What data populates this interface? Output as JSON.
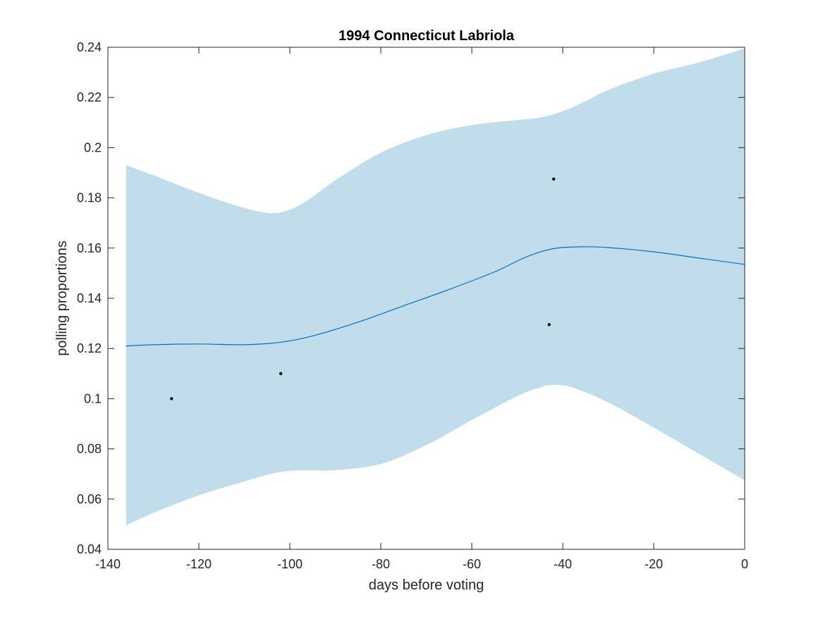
{
  "chart_data": {
    "type": "line",
    "title": "1994 Connecticut Labriola",
    "xlabel": "days before voting",
    "ylabel": "polling proportions",
    "xlim": [
      -140,
      0
    ],
    "ylim": [
      0.04,
      0.24
    ],
    "xticks": [
      -140,
      -120,
      -100,
      -80,
      -60,
      -40,
      -20,
      0
    ],
    "xtick_labels": [
      "-140",
      "-120",
      "-100",
      "-80",
      "-60",
      "-40",
      "-20",
      "0"
    ],
    "yticks": [
      0.04,
      0.06,
      0.08,
      0.1,
      0.12,
      0.14,
      0.16,
      0.18,
      0.2,
      0.22,
      0.24
    ],
    "ytick_labels": [
      "0.04",
      "0.06",
      "0.08",
      "0.1",
      "0.12",
      "0.14",
      "0.16",
      "0.18",
      "0.2",
      "0.22",
      "0.24"
    ],
    "grid": false,
    "colors": {
      "band": "#c1ddeb",
      "trend": "#0072bd",
      "points": "#000000",
      "axes": "#262626"
    },
    "trend": {
      "x": [
        -136,
        -130,
        -120,
        -110,
        -102,
        -95,
        -85,
        -75,
        -65,
        -55,
        -48,
        -42,
        -36,
        -30,
        -20,
        -10,
        0
      ],
      "y": [
        0.121,
        0.1215,
        0.1218,
        0.1215,
        0.1225,
        0.125,
        0.1305,
        0.137,
        0.1435,
        0.1505,
        0.1565,
        0.1598,
        0.1605,
        0.1602,
        0.1585,
        0.156,
        0.1535
      ]
    },
    "band_upper": {
      "x": [
        -136,
        -130,
        -120,
        -110,
        -103,
        -97,
        -90,
        -80,
        -70,
        -60,
        -50,
        -45,
        -40,
        -35,
        -30,
        -20,
        -10,
        0
      ],
      "y": [
        0.193,
        0.189,
        0.182,
        0.176,
        0.174,
        0.178,
        0.187,
        0.198,
        0.205,
        0.209,
        0.211,
        0.212,
        0.2145,
        0.2185,
        0.223,
        0.2295,
        0.234,
        0.2395
      ]
    },
    "band_lower": {
      "x": [
        -136,
        -130,
        -120,
        -110,
        -103,
        -97,
        -90,
        -80,
        -70,
        -60,
        -50,
        -45,
        -42,
        -38,
        -30,
        -20,
        -10,
        0
      ],
      "y": [
        0.0495,
        0.0545,
        0.0615,
        0.067,
        0.0705,
        0.0715,
        0.0715,
        0.074,
        0.0815,
        0.0915,
        0.101,
        0.1045,
        0.1055,
        0.1045,
        0.0985,
        0.0885,
        0.078,
        0.0675
      ]
    },
    "points": {
      "x": [
        -126,
        -102,
        -43,
        -42
      ],
      "y": [
        0.1,
        0.11,
        0.1295,
        0.1875
      ]
    }
  }
}
